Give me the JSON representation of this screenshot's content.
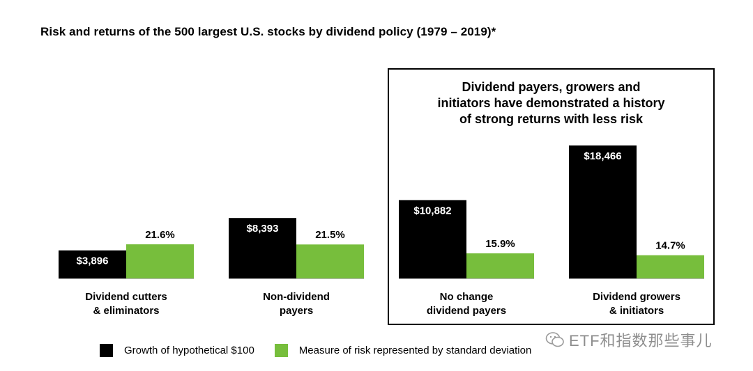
{
  "title": "Risk and returns of the 500 largest U.S. stocks by dividend policy (1979 – 2019)*",
  "callout": {
    "lines": [
      "Dividend payers, growers and",
      "initiators have demonstrated a history",
      "of strong returns with less risk"
    ]
  },
  "watermark": "ETF和指数那些事儿",
  "colors": {
    "growth": "#000000",
    "risk": "#77be3c"
  },
  "chart_data": {
    "type": "bar",
    "categories": [
      [
        "Dividend cutters",
        "& eliminators"
      ],
      [
        "Non-dividend",
        "payers"
      ],
      [
        "No change",
        "dividend payers"
      ],
      [
        "Dividend growers",
        "& initiators"
      ]
    ],
    "series": [
      {
        "name": "Growth of hypothetical $100",
        "values": [
          3896,
          8393,
          10882,
          18466
        ],
        "labels": [
          "$3,896",
          "$8,393",
          "$10,882",
          "$18,466"
        ]
      },
      {
        "name": "Measure of risk represented by standard deviation",
        "values": [
          21.6,
          21.5,
          15.9,
          14.7
        ],
        "labels": [
          "21.6%",
          "21.5%",
          "15.9%",
          "14.7%"
        ]
      }
    ],
    "axes_shown": false,
    "grid": false,
    "legend_position": "bottom"
  }
}
